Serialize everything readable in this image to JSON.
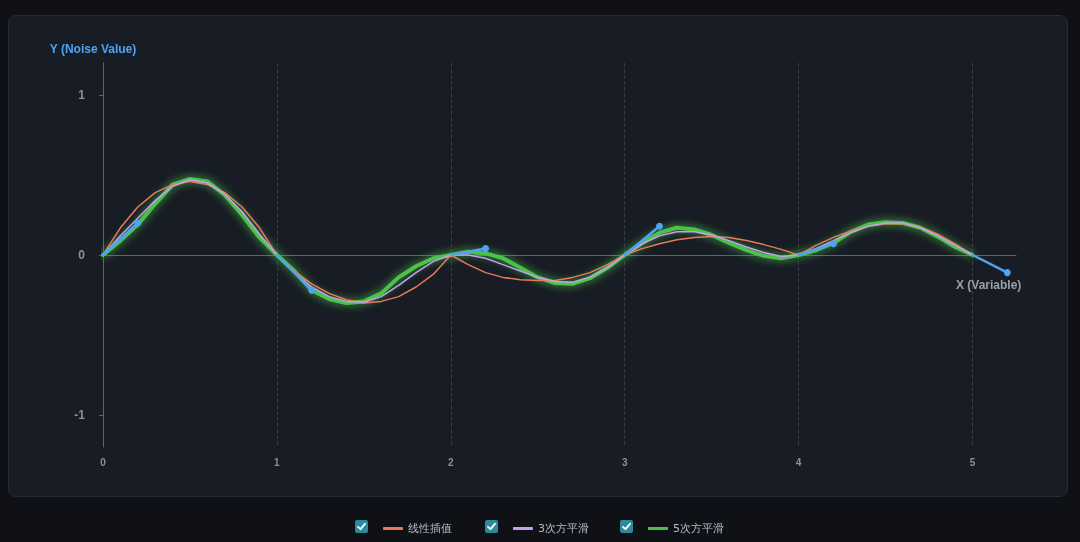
{
  "chart_data": {
    "type": "line",
    "xlabel": "X (Variable)",
    "ylabel": "Y (Noise Value)",
    "x": [
      0,
      0.1,
      0.2,
      0.3,
      0.4,
      0.5,
      0.6,
      0.7,
      0.8,
      0.9,
      1,
      1.1,
      1.2,
      1.3,
      1.4,
      1.5,
      1.6,
      1.7,
      1.8,
      1.9,
      2,
      2.1,
      2.2,
      2.3,
      2.4,
      2.5,
      2.6,
      2.7,
      2.8,
      2.9,
      3,
      3.1,
      3.2,
      3.3,
      3.4,
      3.5,
      3.6,
      3.7,
      3.8,
      3.9,
      4,
      4.1,
      4.2,
      4.3,
      4.4,
      4.5,
      4.6,
      4.7,
      4.8,
      4.9,
      5
    ],
    "series": [
      {
        "name": "线性插值",
        "color": "#e8795c",
        "values": [
          0,
          0.17,
          0.3,
          0.39,
          0.44,
          0.46,
          0.44,
          0.39,
          0.3,
          0.17,
          0,
          -0.1,
          -0.18,
          -0.24,
          -0.28,
          -0.3,
          -0.29,
          -0.26,
          -0.2,
          -0.12,
          0,
          -0.06,
          -0.11,
          -0.14,
          -0.155,
          -0.16,
          -0.16,
          -0.14,
          -0.11,
          -0.06,
          0,
          0.04,
          0.07,
          0.095,
          0.11,
          0.115,
          0.11,
          0.09,
          0.065,
          0.035,
          0,
          0.06,
          0.11,
          0.15,
          0.18,
          0.195,
          0.195,
          0.175,
          0.13,
          0.07,
          0
        ]
      },
      {
        "name": "3次方平滑",
        "color": "#c3a0f0",
        "values": [
          0,
          0.12,
          0.23,
          0.34,
          0.43,
          0.47,
          0.45,
          0.38,
          0.27,
          0.13,
          0,
          -0.11,
          -0.2,
          -0.26,
          -0.29,
          -0.295,
          -0.26,
          -0.19,
          -0.11,
          -0.04,
          0,
          0,
          -0.02,
          -0.06,
          -0.1,
          -0.14,
          -0.165,
          -0.17,
          -0.14,
          -0.08,
          0,
          0.07,
          0.12,
          0.145,
          0.145,
          0.125,
          0.09,
          0.05,
          0.015,
          -0.01,
          0,
          0.04,
          0.09,
          0.14,
          0.18,
          0.2,
          0.2,
          0.17,
          0.12,
          0.06,
          0
        ]
      },
      {
        "color": "#4fa3f0",
        "marker": "circle",
        "x": [
          0,
          0.2
        ],
        "values": [
          0,
          0.2
        ]
      },
      {
        "color": "#4fa3f0",
        "marker": "circle",
        "x": [
          1,
          1.2
        ],
        "values": [
          0,
          -0.22
        ]
      },
      {
        "color": "#4fa3f0",
        "marker": "circle",
        "x": [
          2,
          2.2
        ],
        "values": [
          0,
          0.04
        ]
      },
      {
        "color": "#4fa3f0",
        "marker": "circle",
        "x": [
          3,
          3.2
        ],
        "values": [
          0,
          0.18
        ]
      },
      {
        "color": "#4fa3f0",
        "marker": "circle",
        "x": [
          4,
          4.2
        ],
        "values": [
          0,
          0.07
        ]
      },
      {
        "color": "#4fa3f0",
        "marker": "circle",
        "x": [
          5,
          5.2
        ],
        "values": [
          0,
          -0.11
        ]
      },
      {
        "name": "5次方平滑",
        "color": "#4cc24a",
        "values": [
          0,
          0.09,
          0.19,
          0.32,
          0.44,
          0.475,
          0.46,
          0.375,
          0.25,
          0.11,
          0,
          -0.1,
          -0.22,
          -0.275,
          -0.3,
          -0.29,
          -0.24,
          -0.14,
          -0.07,
          -0.02,
          0,
          0.02,
          0.01,
          -0.02,
          -0.08,
          -0.14,
          -0.175,
          -0.18,
          -0.145,
          -0.08,
          0,
          0.075,
          0.14,
          0.17,
          0.16,
          0.125,
          0.075,
          0.03,
          -0.005,
          -0.02,
          0,
          0.03,
          0.075,
          0.145,
          0.19,
          0.205,
          0.2,
          0.17,
          0.115,
          0.05,
          0
        ]
      }
    ],
    "marker": "none",
    "xlim": [
      0,
      5.25
    ],
    "xticks": [
      0,
      1,
      2,
      3,
      4,
      5
    ],
    "ylim": [
      -1.2,
      1.2
    ],
    "yticks": [
      -1,
      0,
      1
    ],
    "grid": "x",
    "legend": "bottom"
  }
}
